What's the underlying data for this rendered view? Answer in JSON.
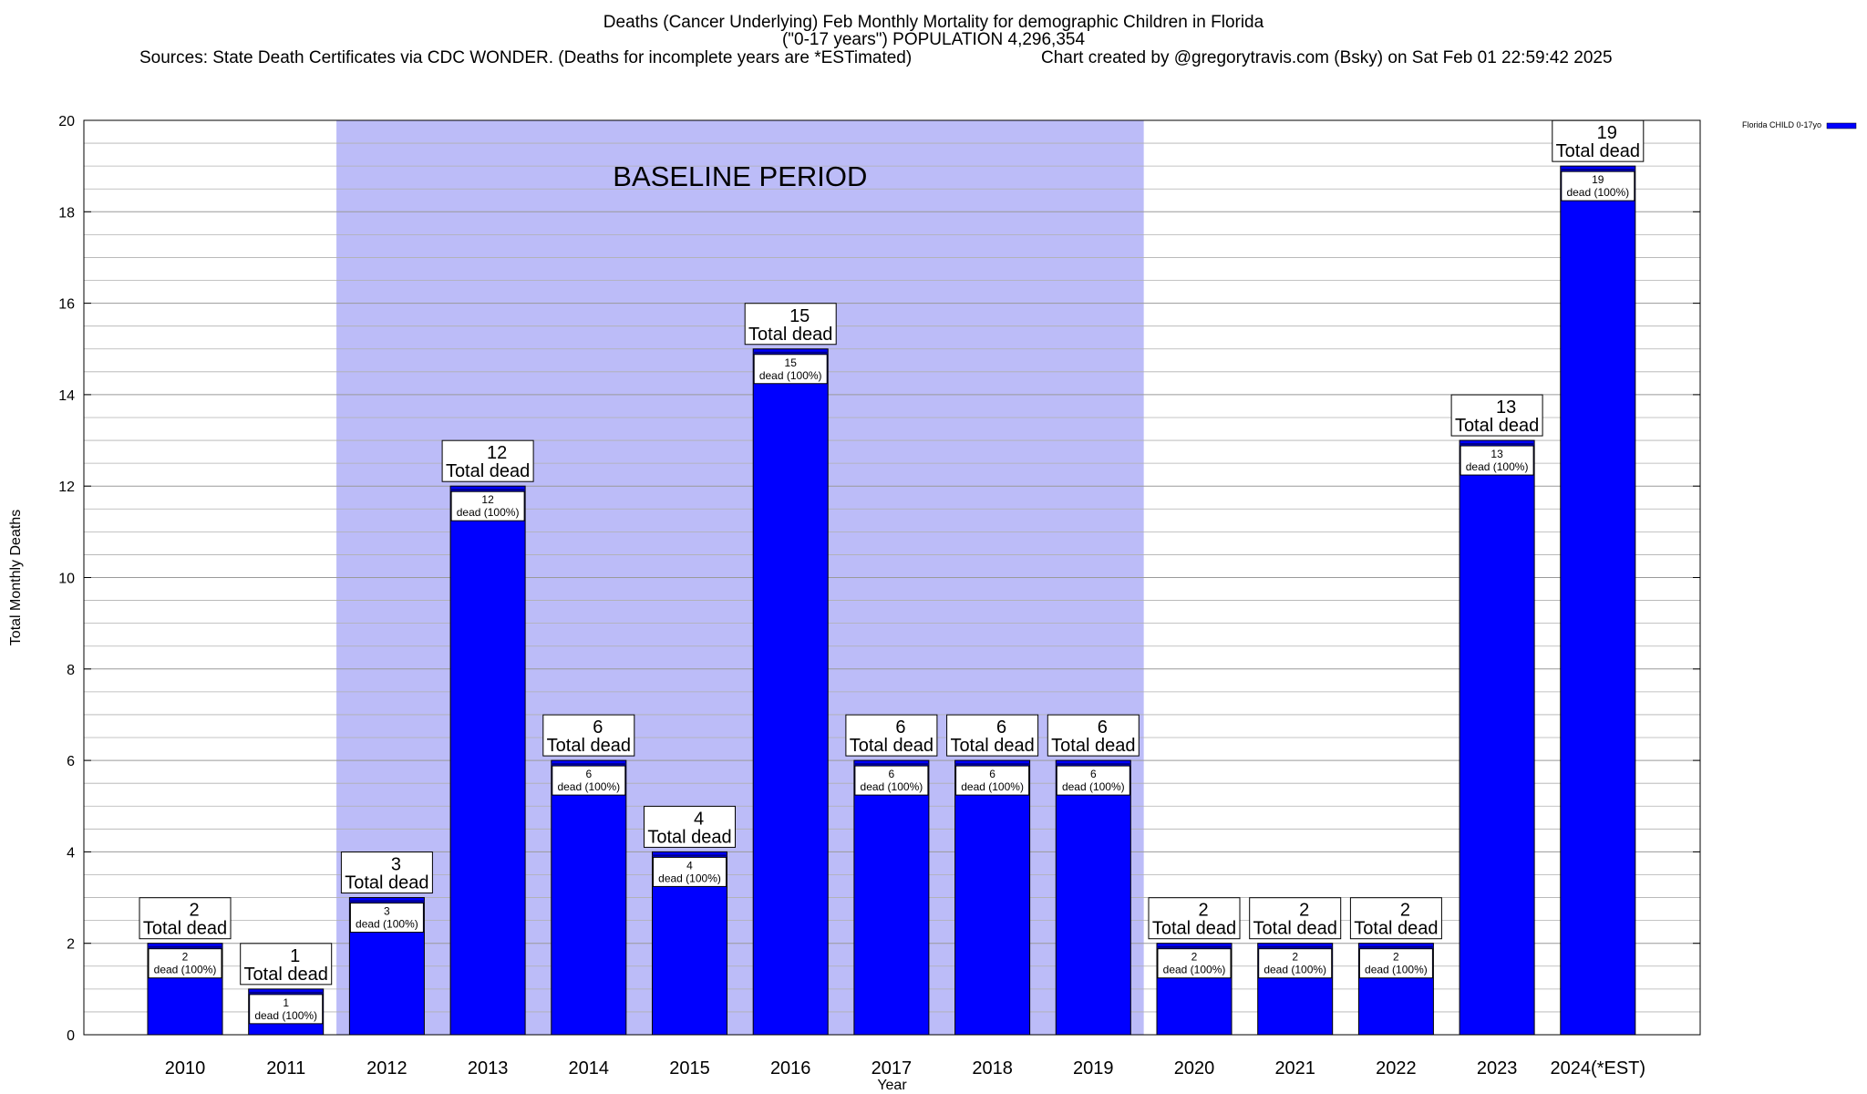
{
  "header": {
    "title_line1": "Deaths (Cancer Underlying) Feb Monthly Mortality for demographic Children in Florida",
    "title_line2": "(\"0-17 years\") POPULATION 4,296,354",
    "sources": "Sources: State Death Certificates via CDC WONDER. (Deaths for incomplete years are *ESTimated)",
    "credit": "Chart created by @gregorytravis.com (Bsky) on Sat Feb 01 22:59:42 2025"
  },
  "chart_data": {
    "type": "bar",
    "title": "Deaths (Cancer Underlying) Feb Monthly Mortality for demographic Children in Florida",
    "xlabel": "Year",
    "ylabel": "Total Monthly Deaths",
    "ylim": [
      0,
      20
    ],
    "yticks": [
      0,
      2,
      4,
      6,
      8,
      10,
      12,
      14,
      16,
      18,
      20
    ],
    "grid": true,
    "legend_position": "top-right",
    "categories": [
      "2010",
      "2011",
      "2012",
      "2013",
      "2014",
      "2015",
      "2016",
      "2017",
      "2018",
      "2019",
      "2020",
      "2021",
      "2022",
      "2023",
      "2024(*EST)"
    ],
    "series": [
      {
        "name": "Florida CHILD 0-17yo",
        "color": "#0000ff",
        "values": [
          2,
          1,
          3,
          12,
          6,
          4,
          15,
          6,
          6,
          6,
          2,
          2,
          2,
          13,
          19
        ],
        "inner_labels": [
          "dead (100%)",
          "dead (100%)",
          "dead (100%)",
          "dead (100%)",
          "dead (100%)",
          "dead (100%)",
          "dead (100%)",
          "dead (100%)",
          "dead (100%)",
          "dead (100%)",
          "dead (100%)",
          "dead (100%)",
          "dead (100%)",
          "dead (100%)",
          "dead (100%)"
        ]
      }
    ],
    "total_label": "Total dead",
    "baseline": {
      "label": "BASELINE PERIOD",
      "from": "2012",
      "to": "2019",
      "color": "#bcbcf8"
    }
  }
}
